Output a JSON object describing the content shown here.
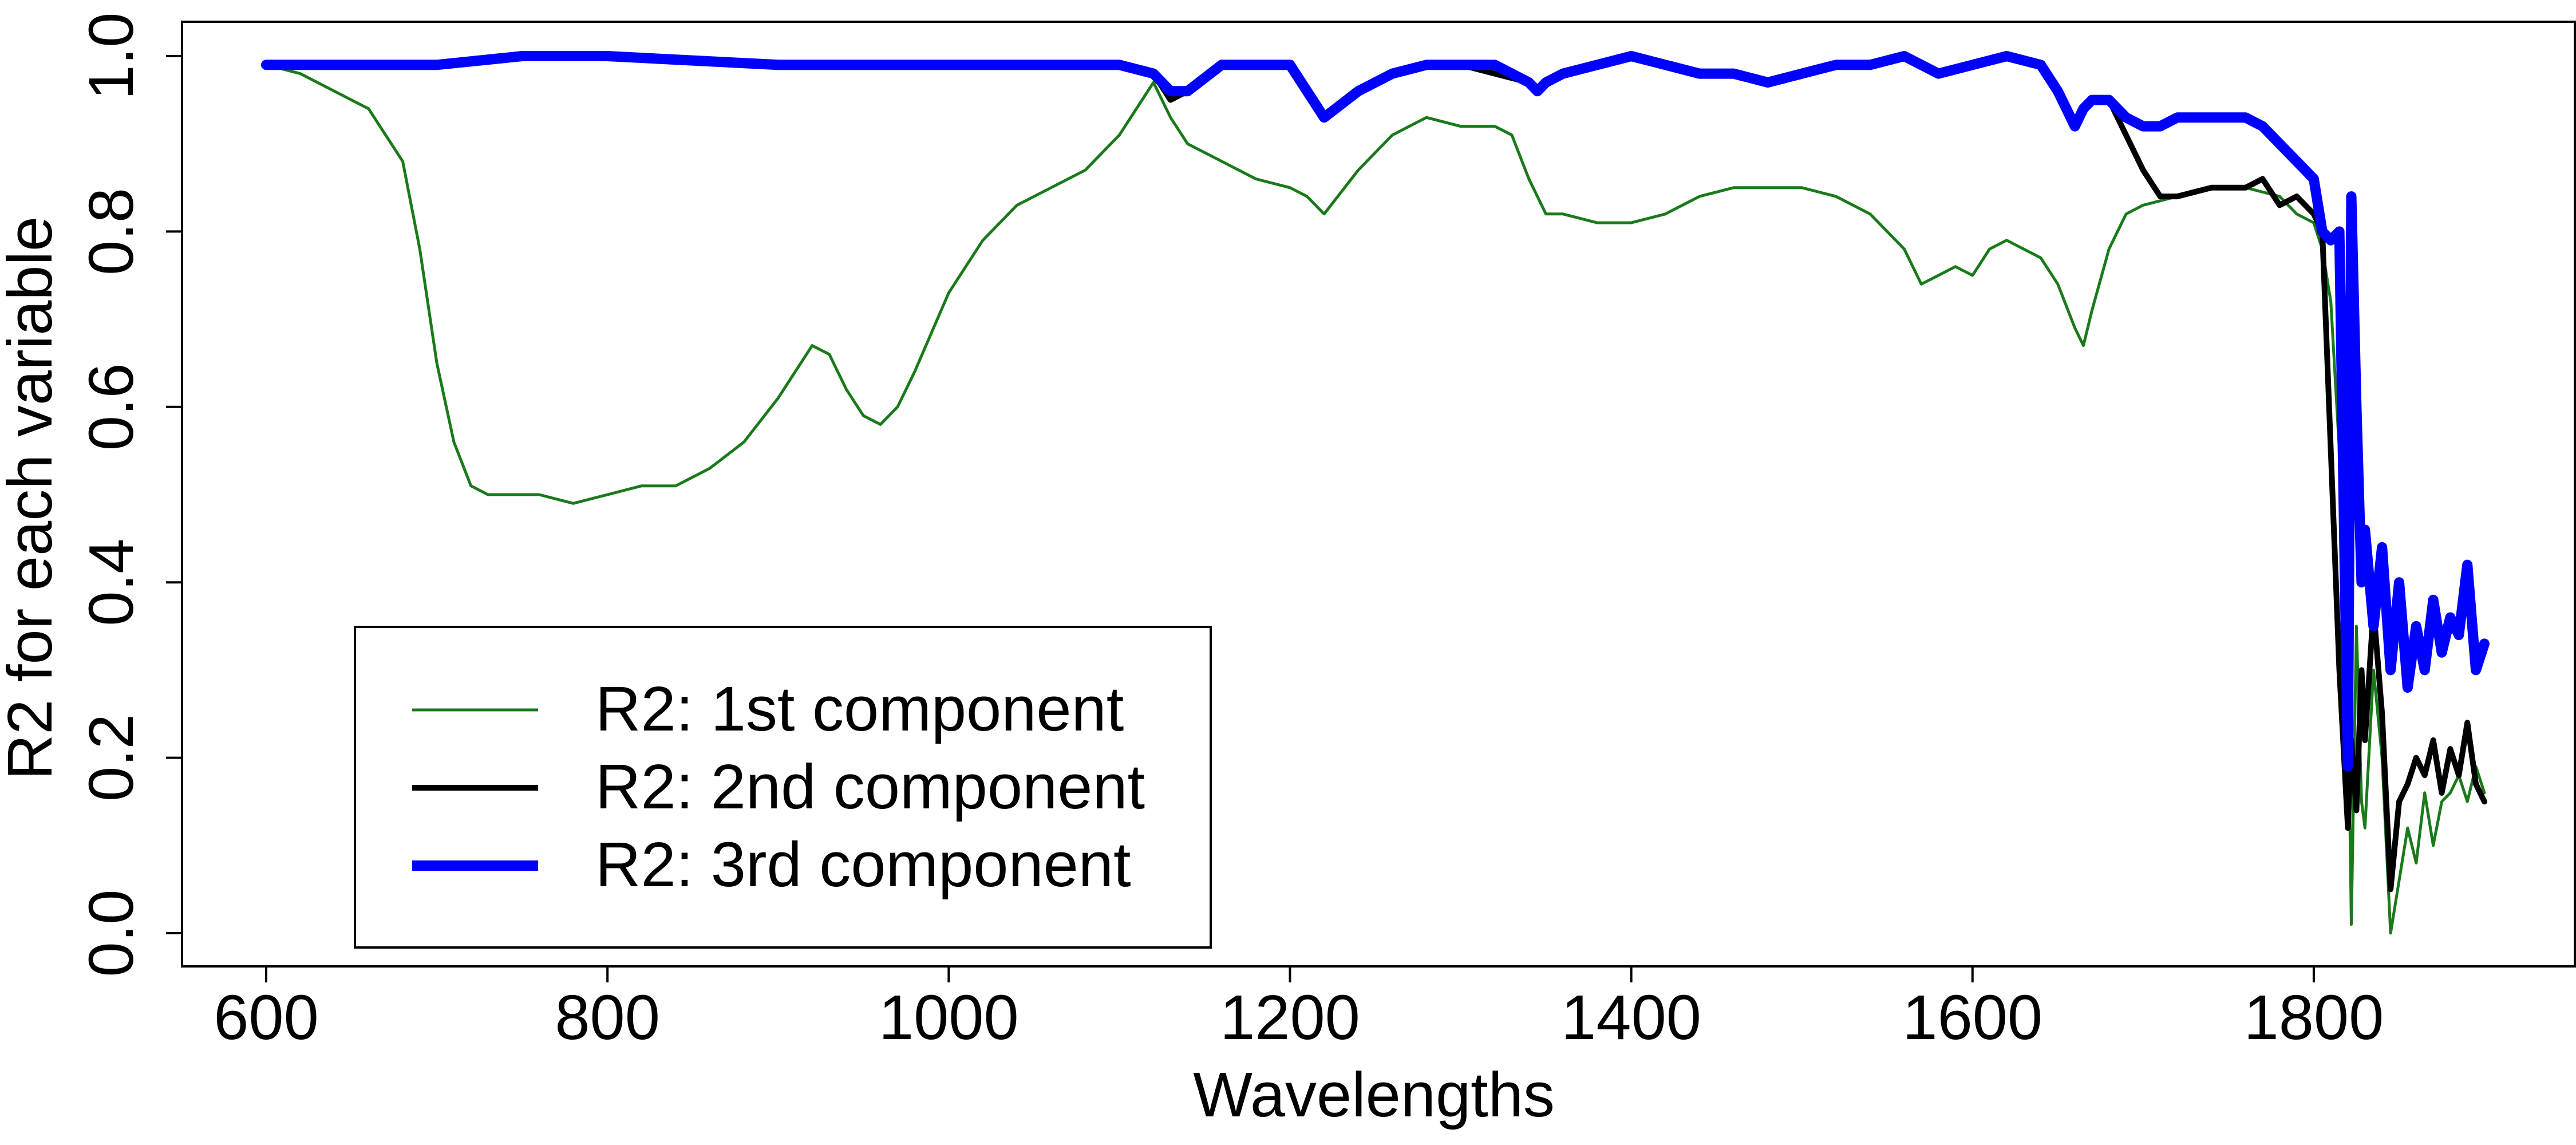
{
  "chart_data": {
    "type": "line",
    "title": "",
    "xlabel": "Wavelengths",
    "ylabel": "R2 for each variable",
    "xlim": [
      600,
      1900
    ],
    "ylim": [
      0,
      1
    ],
    "xticks": [
      600,
      800,
      1000,
      1200,
      1400,
      1600,
      1800
    ],
    "yticks": [
      0.0,
      0.2,
      0.4,
      0.6,
      0.8,
      1.0
    ],
    "xtick_labels": [
      "600",
      "800",
      "1000",
      "1200",
      "1400",
      "1600",
      "1800"
    ],
    "ytick_labels": [
      "0.0",
      "0.2",
      "0.4",
      "0.6",
      "0.8",
      "1.0"
    ],
    "grid": false,
    "legend_position": "bottom-left",
    "series": [
      {
        "name": "R2: 1st component",
        "color": "#1a7a1a",
        "x": [
          600,
          620,
          640,
          660,
          680,
          690,
          700,
          710,
          720,
          730,
          740,
          760,
          780,
          800,
          820,
          840,
          860,
          880,
          900,
          910,
          920,
          930,
          940,
          950,
          960,
          970,
          980,
          1000,
          1020,
          1040,
          1060,
          1080,
          1100,
          1110,
          1120,
          1130,
          1140,
          1160,
          1180,
          1200,
          1210,
          1220,
          1240,
          1260,
          1280,
          1300,
          1320,
          1330,
          1340,
          1350,
          1360,
          1380,
          1400,
          1420,
          1440,
          1460,
          1480,
          1500,
          1520,
          1540,
          1560,
          1570,
          1580,
          1590,
          1600,
          1610,
          1620,
          1640,
          1650,
          1660,
          1665,
          1670,
          1680,
          1690,
          1700,
          1720,
          1740,
          1760,
          1780,
          1790,
          1800,
          1805,
          1810,
          1815,
          1820,
          1822,
          1825,
          1828,
          1830,
          1835,
          1840,
          1845,
          1850,
          1855,
          1860,
          1865,
          1870,
          1875,
          1880,
          1885,
          1890,
          1895,
          1900
        ],
        "y": [
          0.99,
          0.98,
          0.96,
          0.94,
          0.88,
          0.78,
          0.65,
          0.56,
          0.51,
          0.5,
          0.5,
          0.5,
          0.49,
          0.5,
          0.51,
          0.51,
          0.53,
          0.56,
          0.61,
          0.64,
          0.67,
          0.66,
          0.62,
          0.59,
          0.58,
          0.6,
          0.64,
          0.73,
          0.79,
          0.83,
          0.85,
          0.87,
          0.91,
          0.94,
          0.97,
          0.93,
          0.9,
          0.88,
          0.86,
          0.85,
          0.84,
          0.82,
          0.87,
          0.91,
          0.93,
          0.92,
          0.92,
          0.91,
          0.86,
          0.82,
          0.82,
          0.81,
          0.81,
          0.82,
          0.84,
          0.85,
          0.85,
          0.85,
          0.84,
          0.82,
          0.78,
          0.74,
          0.75,
          0.76,
          0.75,
          0.78,
          0.79,
          0.77,
          0.74,
          0.69,
          0.67,
          0.71,
          0.78,
          0.82,
          0.83,
          0.84,
          0.85,
          0.85,
          0.84,
          0.82,
          0.81,
          0.78,
          0.72,
          0.55,
          0.3,
          0.01,
          0.35,
          0.15,
          0.12,
          0.3,
          0.2,
          0.0,
          0.06,
          0.12,
          0.08,
          0.16,
          0.1,
          0.15,
          0.16,
          0.18,
          0.15,
          0.19,
          0.16
        ]
      },
      {
        "name": "R2: 2nd component",
        "color": "#000000",
        "x": [
          600,
          650,
          700,
          750,
          800,
          900,
          1000,
          1100,
          1120,
          1130,
          1140,
          1160,
          1180,
          1200,
          1210,
          1220,
          1240,
          1260,
          1280,
          1300,
          1320,
          1340,
          1345,
          1350,
          1360,
          1380,
          1400,
          1420,
          1440,
          1460,
          1480,
          1500,
          1520,
          1540,
          1560,
          1580,
          1600,
          1620,
          1640,
          1650,
          1660,
          1665,
          1670,
          1680,
          1690,
          1700,
          1710,
          1720,
          1740,
          1760,
          1770,
          1780,
          1790,
          1800,
          1805,
          1810,
          1815,
          1820,
          1822,
          1825,
          1828,
          1830,
          1835,
          1840,
          1845,
          1850,
          1855,
          1860,
          1865,
          1870,
          1875,
          1880,
          1885,
          1890,
          1895,
          1900
        ],
        "y": [
          0.99,
          0.99,
          0.99,
          1.0,
          1.0,
          0.99,
          0.99,
          0.99,
          0.98,
          0.95,
          0.96,
          0.99,
          0.99,
          0.99,
          0.96,
          0.93,
          0.96,
          0.98,
          0.99,
          0.99,
          0.98,
          0.97,
          0.96,
          0.97,
          0.98,
          0.99,
          1.0,
          0.99,
          0.98,
          0.98,
          0.97,
          0.98,
          0.99,
          0.99,
          1.0,
          0.98,
          0.99,
          1.0,
          0.99,
          0.96,
          0.92,
          0.94,
          0.95,
          0.95,
          0.91,
          0.87,
          0.84,
          0.84,
          0.85,
          0.85,
          0.86,
          0.83,
          0.84,
          0.82,
          0.8,
          0.55,
          0.3,
          0.12,
          0.22,
          0.14,
          0.3,
          0.22,
          0.37,
          0.25,
          0.05,
          0.15,
          0.17,
          0.2,
          0.18,
          0.22,
          0.16,
          0.21,
          0.18,
          0.24,
          0.17,
          0.15
        ]
      },
      {
        "name": "R2: 3rd component",
        "color": "#0000ff",
        "x": [
          600,
          650,
          700,
          750,
          800,
          900,
          1000,
          1100,
          1120,
          1130,
          1140,
          1160,
          1180,
          1200,
          1210,
          1220,
          1240,
          1260,
          1280,
          1300,
          1320,
          1340,
          1345,
          1350,
          1360,
          1380,
          1400,
          1420,
          1440,
          1460,
          1480,
          1500,
          1520,
          1540,
          1560,
          1580,
          1600,
          1620,
          1640,
          1650,
          1660,
          1665,
          1670,
          1680,
          1690,
          1700,
          1710,
          1720,
          1740,
          1760,
          1770,
          1780,
          1790,
          1800,
          1805,
          1810,
          1815,
          1820,
          1822,
          1825,
          1828,
          1830,
          1835,
          1840,
          1845,
          1850,
          1855,
          1860,
          1865,
          1870,
          1875,
          1880,
          1885,
          1890,
          1895,
          1900
        ],
        "y": [
          0.99,
          0.99,
          0.99,
          1.0,
          1.0,
          0.99,
          0.99,
          0.99,
          0.98,
          0.96,
          0.96,
          0.99,
          0.99,
          0.99,
          0.96,
          0.93,
          0.96,
          0.98,
          0.99,
          0.99,
          0.99,
          0.97,
          0.96,
          0.97,
          0.98,
          0.99,
          1.0,
          0.99,
          0.98,
          0.98,
          0.97,
          0.98,
          0.99,
          0.99,
          1.0,
          0.98,
          0.99,
          1.0,
          0.99,
          0.96,
          0.92,
          0.94,
          0.95,
          0.95,
          0.93,
          0.92,
          0.92,
          0.93,
          0.93,
          0.93,
          0.92,
          0.9,
          0.88,
          0.86,
          0.8,
          0.79,
          0.8,
          0.19,
          0.84,
          0.6,
          0.4,
          0.46,
          0.35,
          0.44,
          0.3,
          0.4,
          0.28,
          0.35,
          0.3,
          0.38,
          0.32,
          0.36,
          0.34,
          0.42,
          0.3,
          0.33
        ]
      }
    ]
  }
}
